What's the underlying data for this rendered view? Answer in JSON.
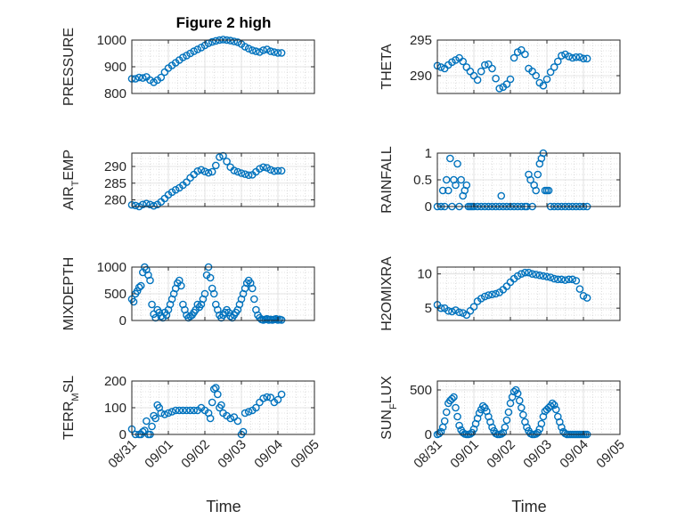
{
  "title": "Figure 2 high",
  "marker_color": "#0072bd",
  "chart_data": [
    {
      "type": "scatter",
      "ylabel": "PRESSURE",
      "ylim": [
        800,
        1000
      ],
      "yticks": [
        "800",
        "900",
        "1000"
      ],
      "xlim": [
        0,
        5
      ],
      "grid": true,
      "x": [
        0.0,
        0.1,
        0.2,
        0.3,
        0.4,
        0.5,
        0.6,
        0.7,
        0.8,
        0.9,
        1.0,
        1.1,
        1.2,
        1.3,
        1.4,
        1.5,
        1.6,
        1.7,
        1.8,
        1.9,
        2.0,
        2.1,
        2.2,
        2.3,
        2.4,
        2.5,
        2.6,
        2.7,
        2.8,
        2.9,
        3.0,
        3.1,
        3.2,
        3.3,
        3.4,
        3.5,
        3.6,
        3.7,
        3.8,
        3.9,
        4.0,
        4.1
      ],
      "y": [
        855,
        855,
        860,
        858,
        862,
        850,
        842,
        850,
        860,
        880,
        895,
        905,
        915,
        925,
        935,
        942,
        950,
        958,
        965,
        972,
        980,
        988,
        993,
        997,
        1000,
        1002,
        1000,
        998,
        995,
        992,
        985,
        975,
        968,
        962,
        958,
        955,
        962,
        965,
        958,
        955,
        952,
        952
      ]
    },
    {
      "type": "scatter",
      "ylabel": "THETA",
      "ylim": [
        287.5,
        295
      ],
      "yticks": [
        "290",
        "295"
      ],
      "xlim": [
        0,
        5
      ],
      "grid": true,
      "x": [
        0.0,
        0.1,
        0.2,
        0.3,
        0.4,
        0.5,
        0.6,
        0.7,
        0.8,
        0.9,
        1.0,
        1.1,
        1.2,
        1.3,
        1.4,
        1.5,
        1.6,
        1.7,
        1.8,
        1.9,
        2.0,
        2.1,
        2.2,
        2.3,
        2.4,
        2.5,
        2.6,
        2.7,
        2.8,
        2.9,
        3.0,
        3.1,
        3.2,
        3.3,
        3.4,
        3.5,
        3.6,
        3.7,
        3.8,
        3.9,
        4.0,
        4.1
      ],
      "y": [
        291.4,
        291.2,
        291.0,
        291.5,
        291.9,
        292.2,
        292.5,
        292.0,
        291.2,
        290.6,
        290.0,
        289.4,
        290.6,
        291.5,
        291.6,
        291.0,
        289.6,
        288.2,
        288.4,
        288.8,
        289.5,
        292.5,
        293.3,
        293.6,
        293.0,
        291.0,
        290.6,
        290.0,
        289.0,
        288.6,
        289.5,
        290.5,
        291.2,
        292.0,
        292.8,
        293.0,
        292.7,
        292.5,
        292.6,
        292.6,
        292.4,
        292.4
      ]
    },
    {
      "type": "scatter",
      "ylabel": "AIR_TEMP",
      "ylim": [
        278,
        294
      ],
      "yticks": [
        "280",
        "285",
        "290"
      ],
      "xlim": [
        0,
        5
      ],
      "grid": true,
      "x": [
        0.0,
        0.1,
        0.2,
        0.3,
        0.4,
        0.5,
        0.6,
        0.7,
        0.8,
        0.9,
        1.0,
        1.1,
        1.2,
        1.3,
        1.4,
        1.5,
        1.6,
        1.7,
        1.8,
        1.9,
        2.0,
        2.1,
        2.2,
        2.3,
        2.4,
        2.5,
        2.6,
        2.7,
        2.8,
        2.9,
        3.0,
        3.1,
        3.2,
        3.3,
        3.4,
        3.5,
        3.6,
        3.7,
        3.8,
        3.9,
        4.0,
        4.1
      ],
      "y": [
        278.5,
        278.3,
        278.0,
        278.6,
        278.9,
        278.6,
        278.2,
        278.6,
        279.4,
        280.4,
        281.5,
        282.3,
        283.0,
        283.6,
        284.4,
        285.3,
        286.6,
        287.6,
        288.6,
        289.0,
        288.5,
        288.1,
        288.4,
        290.3,
        292.8,
        293.2,
        291.5,
        289.8,
        288.8,
        288.4,
        288.0,
        287.7,
        287.4,
        287.5,
        288.4,
        289.3,
        289.8,
        289.6,
        289.0,
        288.6,
        288.7,
        288.7
      ]
    },
    {
      "type": "scatter",
      "ylabel": "RAINFALL",
      "ylim": [
        0,
        1
      ],
      "yticks": [
        "0",
        "0.5",
        "1"
      ],
      "xlim": [
        0,
        5
      ],
      "grid": true,
      "x": [
        0.0,
        0.1,
        0.15,
        0.2,
        0.25,
        0.3,
        0.35,
        0.4,
        0.45,
        0.5,
        0.55,
        0.6,
        0.65,
        0.7,
        0.75,
        0.8,
        0.85,
        0.9,
        0.95,
        1.0,
        1.1,
        1.2,
        1.3,
        1.4,
        1.5,
        1.6,
        1.7,
        1.75,
        1.8,
        1.9,
        2.0,
        2.1,
        2.2,
        2.3,
        2.4,
        2.45,
        2.5,
        2.55,
        2.6,
        2.65,
        2.7,
        2.75,
        2.8,
        2.85,
        2.9,
        2.95,
        3.0,
        3.05,
        3.1,
        3.2,
        3.3,
        3.4,
        3.5,
        3.6,
        3.7,
        3.8,
        3.9,
        4.0,
        4.1
      ],
      "y": [
        0,
        0,
        0.3,
        0,
        0.5,
        0.3,
        0.9,
        0,
        0.5,
        0.4,
        0.8,
        0,
        0.5,
        0.2,
        0.3,
        0.4,
        0,
        0,
        0,
        0,
        0,
        0,
        0,
        0,
        0,
        0,
        0,
        0.2,
        0,
        0,
        0,
        0,
        0,
        0,
        0,
        0,
        0.6,
        0.5,
        0,
        0.4,
        0.3,
        0.6,
        0.8,
        0.9,
        1.0,
        0.3,
        0.3,
        0.3,
        0,
        0,
        0,
        0,
        0,
        0,
        0,
        0,
        0,
        0,
        0
      ]
    },
    {
      "type": "scatter",
      "ylabel": "MIXDEPTH",
      "ylim": [
        0,
        1000
      ],
      "yticks": [
        "0",
        "500",
        "1000"
      ],
      "xlim": [
        0,
        5
      ],
      "grid": true,
      "x": [
        0.0,
        0.05,
        0.1,
        0.15,
        0.2,
        0.25,
        0.3,
        0.35,
        0.4,
        0.45,
        0.5,
        0.55,
        0.6,
        0.65,
        0.7,
        0.75,
        0.8,
        0.85,
        0.9,
        0.95,
        1.0,
        1.05,
        1.1,
        1.15,
        1.2,
        1.25,
        1.3,
        1.35,
        1.4,
        1.45,
        1.5,
        1.55,
        1.6,
        1.65,
        1.7,
        1.75,
        1.8,
        1.85,
        1.9,
        1.95,
        2.0,
        2.05,
        2.1,
        2.15,
        2.2,
        2.25,
        2.3,
        2.35,
        2.4,
        2.45,
        2.5,
        2.55,
        2.6,
        2.65,
        2.7,
        2.75,
        2.8,
        2.85,
        2.9,
        2.95,
        3.0,
        3.05,
        3.1,
        3.15,
        3.2,
        3.25,
        3.3,
        3.35,
        3.4,
        3.45,
        3.5,
        3.55,
        3.6,
        3.65,
        3.7,
        3.75,
        3.8,
        3.85,
        3.9,
        3.95,
        4.0,
        4.05,
        4.1
      ],
      "y": [
        400,
        350,
        500,
        550,
        620,
        650,
        900,
        1000,
        950,
        850,
        750,
        300,
        120,
        50,
        200,
        150,
        80,
        50,
        150,
        100,
        200,
        300,
        400,
        500,
        600,
        700,
        750,
        650,
        300,
        200,
        100,
        50,
        80,
        100,
        150,
        200,
        300,
        250,
        300,
        400,
        500,
        850,
        1000,
        800,
        600,
        500,
        300,
        200,
        100,
        50,
        100,
        150,
        200,
        150,
        80,
        50,
        100,
        150,
        200,
        300,
        400,
        500,
        600,
        700,
        750,
        700,
        600,
        400,
        200,
        100,
        50,
        20,
        10,
        20,
        30,
        10,
        20,
        10,
        20,
        30,
        10,
        20,
        10
      ]
    },
    {
      "type": "scatter",
      "ylabel": "H2OMIXRA",
      "ylim": [
        3.2,
        11
      ],
      "yticks": [
        "5",
        "10"
      ],
      "xlim": [
        0,
        5
      ],
      "grid": true,
      "x": [
        0.0,
        0.1,
        0.2,
        0.3,
        0.4,
        0.5,
        0.6,
        0.7,
        0.8,
        0.9,
        1.0,
        1.1,
        1.2,
        1.3,
        1.4,
        1.5,
        1.6,
        1.7,
        1.8,
        1.9,
        2.0,
        2.1,
        2.2,
        2.3,
        2.4,
        2.5,
        2.6,
        2.7,
        2.8,
        2.9,
        3.0,
        3.1,
        3.2,
        3.3,
        3.4,
        3.5,
        3.6,
        3.7,
        3.8,
        3.9,
        4.0,
        4.1
      ],
      "y": [
        5.5,
        5.0,
        5.0,
        4.6,
        4.5,
        4.7,
        4.4,
        4.3,
        4.0,
        4.6,
        5.2,
        6.0,
        6.4,
        6.7,
        6.9,
        7.0,
        7.1,
        7.3,
        7.7,
        8.2,
        8.8,
        9.3,
        9.7,
        10.0,
        10.2,
        10.2,
        10.0,
        9.9,
        9.8,
        9.7,
        9.6,
        9.5,
        9.3,
        9.2,
        9.2,
        9.1,
        9.2,
        9.2,
        9.0,
        7.8,
        6.8,
        6.5
      ]
    },
    {
      "type": "scatter",
      "ylabel": "TERR_MSL",
      "ylim": [
        0,
        200
      ],
      "yticks": [
        "0",
        "100",
        "200"
      ],
      "xlim": [
        0,
        5
      ],
      "grid": true,
      "x": [
        0.0,
        0.1,
        0.2,
        0.25,
        0.3,
        0.35,
        0.4,
        0.45,
        0.5,
        0.55,
        0.6,
        0.65,
        0.7,
        0.75,
        0.8,
        0.9,
        1.0,
        1.1,
        1.2,
        1.3,
        1.4,
        1.5,
        1.6,
        1.7,
        1.8,
        1.9,
        2.0,
        2.1,
        2.15,
        2.2,
        2.25,
        2.3,
        2.35,
        2.4,
        2.45,
        2.5,
        2.6,
        2.7,
        2.8,
        2.9,
        3.0,
        3.05,
        3.1,
        3.2,
        3.3,
        3.4,
        3.5,
        3.6,
        3.7,
        3.8,
        3.9,
        4.0,
        4.1
      ],
      "y": [
        20,
        0,
        0,
        0,
        10,
        15,
        50,
        0,
        0,
        30,
        70,
        60,
        110,
        100,
        80,
        75,
        80,
        85,
        90,
        90,
        90,
        90,
        90,
        90,
        90,
        100,
        90,
        80,
        60,
        120,
        170,
        175,
        150,
        100,
        110,
        80,
        70,
        60,
        65,
        50,
        0,
        10,
        80,
        85,
        90,
        100,
        120,
        135,
        140,
        138,
        120,
        130,
        150
      ]
    },
    {
      "type": "scatter",
      "ylabel": "SUN_FLUX",
      "ylim": [
        0,
        600
      ],
      "yticks": [
        "0",
        "500"
      ],
      "xlim": [
        0,
        5
      ],
      "grid": true,
      "x": [
        0.0,
        0.05,
        0.1,
        0.15,
        0.2,
        0.25,
        0.3,
        0.35,
        0.4,
        0.45,
        0.5,
        0.55,
        0.6,
        0.65,
        0.7,
        0.75,
        0.8,
        0.85,
        0.9,
        0.95,
        1.0,
        1.05,
        1.1,
        1.15,
        1.2,
        1.25,
        1.3,
        1.35,
        1.4,
        1.45,
        1.5,
        1.55,
        1.6,
        1.65,
        1.7,
        1.75,
        1.8,
        1.85,
        1.9,
        1.95,
        2.0,
        2.05,
        2.1,
        2.15,
        2.2,
        2.25,
        2.3,
        2.35,
        2.4,
        2.45,
        2.5,
        2.55,
        2.6,
        2.65,
        2.7,
        2.75,
        2.8,
        2.85,
        2.9,
        2.95,
        3.0,
        3.05,
        3.1,
        3.15,
        3.2,
        3.25,
        3.3,
        3.35,
        3.4,
        3.45,
        3.5,
        3.55,
        3.6,
        3.65,
        3.7,
        3.75,
        3.8,
        3.85,
        3.9,
        3.95,
        4.0,
        4.05,
        4.1
      ],
      "y": [
        0,
        10,
        30,
        80,
        150,
        250,
        350,
        380,
        400,
        420,
        300,
        200,
        100,
        50,
        20,
        5,
        0,
        0,
        5,
        20,
        60,
        120,
        180,
        240,
        280,
        320,
        300,
        260,
        200,
        140,
        80,
        40,
        10,
        0,
        0,
        5,
        20,
        80,
        160,
        250,
        350,
        420,
        480,
        500,
        460,
        380,
        300,
        220,
        140,
        80,
        40,
        10,
        0,
        0,
        5,
        20,
        60,
        120,
        200,
        260,
        280,
        300,
        320,
        350,
        330,
        280,
        200,
        140,
        80,
        30,
        10,
        0,
        0,
        0,
        0,
        0,
        0,
        0,
        0,
        0,
        0,
        0,
        0
      ]
    }
  ],
  "xticks": [
    "08/31",
    "09/01",
    "09/02",
    "09/03",
    "09/04",
    "09/05"
  ],
  "xlabel": "Time"
}
